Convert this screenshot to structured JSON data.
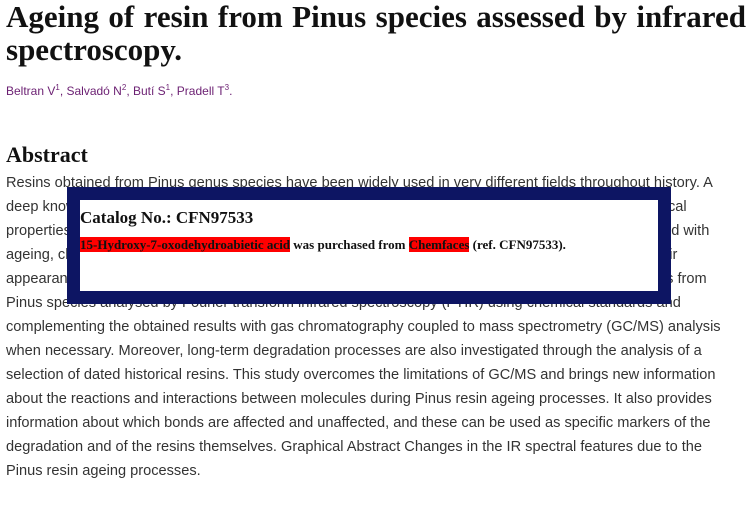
{
  "paper": {
    "title": "Ageing of resin from Pinus species assessed by infrared spectroscopy.",
    "authors": [
      {
        "name": "Beltran V",
        "sup": "1"
      },
      {
        "name": "Salvadó N",
        "sup": "2"
      },
      {
        "name": "Butí S",
        "sup": "1"
      },
      {
        "name": "Pradell T",
        "sup": "3"
      }
    ],
    "abstract_heading": "Abstract",
    "abstract_text": "Resins obtained from Pinus genus species have been widely used in very different fields throughout history. A deep knowledge of their chemical composition is thus required to understand their mechanical and optical properties and to assess their state of conservation, as the resins undergo chemical changes associated with ageing, chemical reactions with other materials and with the environment. This instance changes in their appearance and properties. The present paper focusses on the systematic study of the ageing of resins from Pinus species analysed by Fourier transform infrared spectroscopy (FTIR) using chemical standards and complementing the obtained results with gas chromatography coupled to mass spectrometry (GC/MS) analysis when necessary. Moreover, long-term degradation processes are also investigated through the analysis of a selection of dated historical resins. This study overcomes the limitations of GC/MS and brings new information about the reactions and interactions between molecules during Pinus resin ageing processes. It also provides information about which bonds are affected and unaffected, and these can be used as specific markers of the degradation and of the resins themselves. Graphical Abstract Changes in the IR spectral features due to the Pinus resin ageing processes."
  },
  "overlay": {
    "catalog_label": "Catalog No.: CFN97533",
    "compound": "15-Hydroxy-7-oxodehydroabietic acid",
    "middle_text": " was purchased from ",
    "supplier": "Chemfaces",
    "tail_text": " (ref. CFN97533).",
    "highlight_color": "#ff0000",
    "border_color": "#0d1563"
  }
}
